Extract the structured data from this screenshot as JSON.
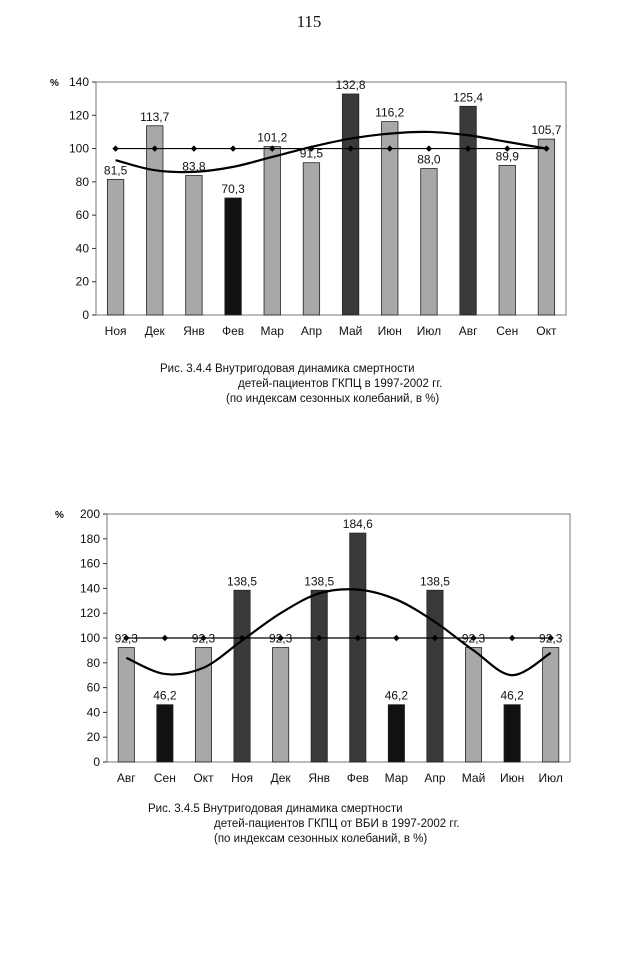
{
  "page": {
    "number": "115"
  },
  "figures": [
    {
      "caption": [
        "Рис. 3.4.4 Внутригодовая динамика смертности",
        "детей-пациентов ГКПЦ в 1997-2002 гг.",
        "(по индексам сезонных колебаний, в %)"
      ]
    },
    {
      "caption": [
        "Рис. 3.4.5 Внутригодовая динамика смертности",
        "детей-пациентов ГКПЦ от ВБИ в 1997-2002 гг.",
        "(по индексам сезонных колебаний, в %)"
      ]
    }
  ],
  "chart_data": [
    {
      "type": "bar",
      "ylabel": "%",
      "ylim": [
        0,
        140
      ],
      "yticks": [
        "0",
        "20",
        "40",
        "60",
        "80",
        "100",
        "120",
        "140"
      ],
      "grid": false,
      "categories": [
        "Ноя",
        "Дек",
        "Янв",
        "Фев",
        "Мар",
        "Апр",
        "Май",
        "Июн",
        "Июл",
        "Авг",
        "Сен",
        "Окт"
      ],
      "values": [
        81.5,
        113.7,
        83.8,
        70.3,
        101.2,
        91.5,
        132.8,
        116.2,
        88.0,
        125.4,
        89.9,
        105.7
      ],
      "value_labels": [
        "81,5",
        "113,7",
        "83,8",
        "70,3",
        "101,2",
        "91,5",
        "132,8",
        "116,2",
        "88,0",
        "125,4",
        "89,9",
        "105,7"
      ],
      "bar_shades": [
        "light",
        "light",
        "light",
        "black",
        "light",
        "light",
        "dark",
        "light",
        "light",
        "dark",
        "light",
        "light"
      ],
      "baseline_line": {
        "value": 100,
        "markers": "diamond"
      },
      "trend_curve": [
        93,
        87,
        86,
        89,
        95,
        101,
        106,
        109,
        110,
        108,
        104,
        100
      ],
      "colors": {
        "light": "#a8a8a8",
        "dark": "#3a3a3a",
        "black": "#111111",
        "line": "#000000",
        "plot_bg": "#ffffff"
      }
    },
    {
      "type": "bar",
      "ylabel": "%",
      "ylim": [
        0,
        200
      ],
      "yticks": [
        "0",
        "20",
        "40",
        "60",
        "80",
        "100",
        "120",
        "140",
        "160",
        "180",
        "200"
      ],
      "grid": false,
      "categories": [
        "Авг",
        "Сен",
        "Окт",
        "Ноя",
        "Дек",
        "Янв",
        "Фев",
        "Мар",
        "Апр",
        "Май",
        "Июн",
        "Июл"
      ],
      "values": [
        92.3,
        46.2,
        92.3,
        138.5,
        92.3,
        138.5,
        184.6,
        46.2,
        138.5,
        92.3,
        46.2,
        92.3
      ],
      "value_labels": [
        "92,3",
        "46,2",
        "92,3",
        "138,5",
        "92,3",
        "138,5",
        "184,6",
        "46,2",
        "138,5",
        "92,3",
        "46,2",
        "92,3"
      ],
      "bar_shades": [
        "light",
        "black",
        "light",
        "dark",
        "light",
        "dark",
        "dark",
        "black",
        "dark",
        "light",
        "black",
        "light"
      ],
      "baseline_line": {
        "value": 100,
        "markers": "diamond"
      },
      "trend_curve": [
        84,
        71,
        76,
        98,
        120,
        136,
        139,
        131,
        113,
        90,
        70,
        88
      ],
      "colors": {
        "light": "#a8a8a8",
        "dark": "#3a3a3a",
        "black": "#111111",
        "line": "#000000",
        "plot_bg": "#ffffff"
      }
    }
  ]
}
